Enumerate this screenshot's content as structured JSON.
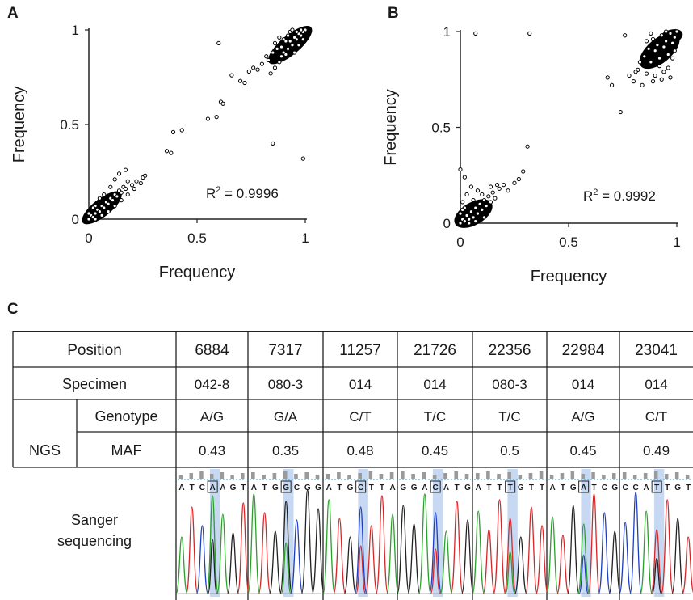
{
  "panel_labels": {
    "a": "A",
    "b": "B",
    "c": "C"
  },
  "chart_data": [
    {
      "type": "scatter",
      "panel": "A",
      "xlabel": "Frequency",
      "ylabel": "Frequency",
      "xlim": [
        0,
        1
      ],
      "ylim": [
        0,
        1
      ],
      "xticks": [
        "0",
        "0.5",
        "1"
      ],
      "yticks": [
        "0",
        "0.5",
        "1"
      ],
      "annotation": {
        "prefix": "R",
        "sup": "2",
        "value": " = 0.9996"
      },
      "points": [
        [
          0.6,
          0.93
        ],
        [
          0.85,
          0.4
        ],
        [
          0.99,
          0.32
        ],
        [
          0.43,
          0.47
        ],
        [
          0.39,
          0.46
        ],
        [
          0.36,
          0.36
        ],
        [
          0.38,
          0.35
        ],
        [
          0.55,
          0.53
        ],
        [
          0.59,
          0.54
        ],
        [
          0.61,
          0.62
        ],
        [
          0.62,
          0.61
        ],
        [
          0.66,
          0.76
        ],
        [
          0.7,
          0.73
        ],
        [
          0.72,
          0.72
        ],
        [
          0.74,
          0.78
        ],
        [
          0.76,
          0.8
        ],
        [
          0.8,
          0.82
        ],
        [
          0.78,
          0.79
        ],
        [
          0.82,
          0.86
        ],
        [
          0.84,
          0.77
        ],
        [
          0.86,
          0.8
        ],
        [
          0.88,
          0.83
        ],
        [
          0.9,
          0.88
        ],
        [
          0.92,
          0.9
        ],
        [
          0.94,
          0.92
        ],
        [
          0.96,
          0.95
        ],
        [
          0.98,
          0.97
        ],
        [
          1.0,
          1.0
        ],
        [
          0.99,
          0.99
        ],
        [
          0.97,
          0.98
        ],
        [
          0.95,
          0.96
        ],
        [
          0.93,
          0.94
        ],
        [
          0.91,
          0.87
        ],
        [
          0.87,
          0.9
        ],
        [
          0.89,
          0.91
        ],
        [
          0.83,
          0.84
        ],
        [
          0.85,
          0.88
        ],
        [
          0.9,
          0.95
        ],
        [
          0.93,
          0.99
        ],
        [
          0.96,
          0.99
        ],
        [
          0.88,
          0.96
        ],
        [
          0.86,
          0.93
        ],
        [
          0.95,
          0.88
        ],
        [
          0.97,
          0.92
        ],
        [
          0.99,
          0.95
        ],
        [
          0.98,
          1.0
        ],
        [
          0.94,
          1.0
        ],
        [
          0.92,
          0.97
        ],
        [
          0.91,
          0.94
        ],
        [
          0.89,
          0.86
        ],
        [
          0.0,
          0.0
        ],
        [
          0.01,
          0.02
        ],
        [
          0.02,
          0.01
        ],
        [
          0.03,
          0.03
        ],
        [
          0.04,
          0.05
        ],
        [
          0.05,
          0.04
        ],
        [
          0.06,
          0.07
        ],
        [
          0.07,
          0.06
        ],
        [
          0.08,
          0.09
        ],
        [
          0.09,
          0.08
        ],
        [
          0.1,
          0.11
        ],
        [
          0.11,
          0.1
        ],
        [
          0.12,
          0.13
        ],
        [
          0.13,
          0.12
        ],
        [
          0.14,
          0.15
        ],
        [
          0.15,
          0.14
        ],
        [
          0.16,
          0.17
        ],
        [
          0.17,
          0.16
        ],
        [
          0.18,
          0.2
        ],
        [
          0.2,
          0.18
        ],
        [
          0.22,
          0.2
        ],
        [
          0.25,
          0.22
        ],
        [
          0.14,
          0.24
        ],
        [
          0.17,
          0.26
        ],
        [
          0.12,
          0.21
        ],
        [
          0.1,
          0.17
        ],
        [
          0.07,
          0.13
        ],
        [
          0.05,
          0.11
        ],
        [
          0.03,
          0.07
        ],
        [
          0.02,
          0.06
        ],
        [
          0.06,
          0.02
        ],
        [
          0.09,
          0.04
        ],
        [
          0.12,
          0.07
        ],
        [
          0.15,
          0.1
        ],
        [
          0.18,
          0.13
        ],
        [
          0.21,
          0.16
        ],
        [
          0.24,
          0.19
        ],
        [
          0.26,
          0.23
        ],
        [
          0.0,
          0.03
        ],
        [
          0.03,
          0.0
        ]
      ]
    },
    {
      "type": "scatter",
      "panel": "B",
      "xlabel": "Frequency",
      "ylabel": "Frequency",
      "xlim": [
        0,
        1
      ],
      "ylim": [
        0,
        1
      ],
      "xticks": [
        "0",
        "0.5",
        "1"
      ],
      "yticks": [
        "0",
        "0.5",
        "1"
      ],
      "annotation": {
        "prefix": "R",
        "sup": "2",
        "value": " = 0.9992"
      },
      "points": [
        [
          0.07,
          0.99
        ],
        [
          0.32,
          0.99
        ],
        [
          0.76,
          0.98
        ],
        [
          0.68,
          0.76
        ],
        [
          0.7,
          0.72
        ],
        [
          0.74,
          0.58
        ],
        [
          0.78,
          0.77
        ],
        [
          0.8,
          0.74
        ],
        [
          0.82,
          0.8
        ],
        [
          0.84,
          0.72
        ],
        [
          0.86,
          0.78
        ],
        [
          0.88,
          0.84
        ],
        [
          0.9,
          0.9
        ],
        [
          0.92,
          0.86
        ],
        [
          0.94,
          0.92
        ],
        [
          0.96,
          0.88
        ],
        [
          0.98,
          0.94
        ],
        [
          1.0,
          1.0
        ],
        [
          0.99,
          0.97
        ],
        [
          0.97,
          0.99
        ],
        [
          0.95,
          0.95
        ],
        [
          0.93,
          0.98
        ],
        [
          0.91,
          0.93
        ],
        [
          0.89,
          0.96
        ],
        [
          0.87,
          0.91
        ],
        [
          0.85,
          0.87
        ],
        [
          0.83,
          0.84
        ],
        [
          0.81,
          0.79
        ],
        [
          0.9,
          0.77
        ],
        [
          0.93,
          0.75
        ],
        [
          0.96,
          0.81
        ],
        [
          0.98,
          0.86
        ],
        [
          0.88,
          0.99
        ],
        [
          0.95,
          1.0
        ],
        [
          0.99,
          0.9
        ],
        [
          0.86,
          0.95
        ],
        [
          0.92,
          0.82
        ],
        [
          0.97,
          0.76
        ],
        [
          0.89,
          0.74
        ],
        [
          0.94,
          0.79
        ],
        [
          0.31,
          0.4
        ],
        [
          0.29,
          0.27
        ],
        [
          0.27,
          0.23
        ],
        [
          0.0,
          0.28
        ],
        [
          0.02,
          0.24
        ],
        [
          0.0,
          0.0
        ],
        [
          0.01,
          0.02
        ],
        [
          0.02,
          0.01
        ],
        [
          0.03,
          0.04
        ],
        [
          0.04,
          0.02
        ],
        [
          0.05,
          0.06
        ],
        [
          0.06,
          0.03
        ],
        [
          0.07,
          0.08
        ],
        [
          0.08,
          0.05
        ],
        [
          0.09,
          0.1
        ],
        [
          0.1,
          0.07
        ],
        [
          0.11,
          0.12
        ],
        [
          0.12,
          0.09
        ],
        [
          0.13,
          0.14
        ],
        [
          0.14,
          0.11
        ],
        [
          0.15,
          0.16
        ],
        [
          0.16,
          0.13
        ],
        [
          0.18,
          0.18
        ],
        [
          0.2,
          0.2
        ],
        [
          0.22,
          0.17
        ],
        [
          0.25,
          0.21
        ],
        [
          0.03,
          0.15
        ],
        [
          0.05,
          0.19
        ],
        [
          0.08,
          0.17
        ],
        [
          0.01,
          0.11
        ],
        [
          0.02,
          0.08
        ],
        [
          0.06,
          0.12
        ],
        [
          0.1,
          0.15
        ],
        [
          0.14,
          0.19
        ],
        [
          0.17,
          0.2
        ],
        [
          0.04,
          0.0
        ],
        [
          0.07,
          0.01
        ],
        [
          0.11,
          0.03
        ],
        [
          0.0,
          0.05
        ],
        [
          0.01,
          0.07
        ]
      ]
    }
  ],
  "table": {
    "header_label": "Position",
    "positions": [
      "6884",
      "7317",
      "11257",
      "21726",
      "22356",
      "22984",
      "23041"
    ],
    "specimen_label": "Specimen",
    "specimens": [
      "042-8",
      "080-3",
      "014",
      "014",
      "080-3",
      "014",
      "014"
    ],
    "ngs_label": "NGS",
    "genotype_label": "Genotype",
    "genotypes": [
      "A/G",
      "G/A",
      "C/T",
      "T/C",
      "T/C",
      "A/G",
      "C/T"
    ],
    "maf_label": "MAF",
    "mafs": [
      "0.43",
      "0.35",
      "0.48",
      "0.45",
      "0.5",
      "0.45",
      "0.49"
    ],
    "sanger_label_line1": "Sanger",
    "sanger_label_line2": "sequencing",
    "sequences": [
      [
        "A",
        "T",
        "C",
        "A",
        "A",
        "G",
        "T"
      ],
      [
        "A",
        "T",
        "G",
        "G",
        "C",
        "G",
        "G"
      ],
      [
        "A",
        "T",
        "G",
        "C",
        "T",
        "T",
        "A"
      ],
      [
        "G",
        "G",
        "A",
        "C",
        "A",
        "T",
        "G"
      ],
      [
        "A",
        "T",
        "T",
        "T",
        "G",
        "T",
        "T"
      ],
      [
        "A",
        "T",
        "G",
        "A",
        "T",
        "C",
        "G"
      ],
      [
        "C",
        "C",
        "A",
        "T",
        "T",
        "G",
        "T"
      ]
    ],
    "base_colors": {
      "A": "#2aa02a",
      "T": "#d62728",
      "G": "#222222",
      "C": "#1f3fbf"
    },
    "highlight_color": "#c6d8f2"
  }
}
